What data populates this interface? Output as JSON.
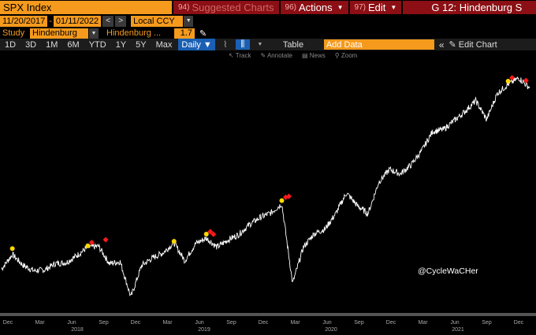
{
  "toolbar": {
    "ticker": "SPX Index",
    "suggested": {
      "num": "94)",
      "label": "Suggested Charts"
    },
    "actions": {
      "num": "96)",
      "label": "Actions"
    },
    "edit": {
      "num": "97)",
      "label": "Edit"
    },
    "title": "G 12: Hindenburg S"
  },
  "dates": {
    "start": "11/20/2017",
    "end": "01/11/2022",
    "currency": "Local CCY"
  },
  "study": {
    "label": "Study",
    "value": "Hindenburg",
    "param_label": "Hindenburg ...",
    "param_value": "1.7"
  },
  "ranges": [
    "1D",
    "3D",
    "1M",
    "6M",
    "YTD",
    "1Y",
    "5Y",
    "Max"
  ],
  "frequency": "Daily",
  "table_label": "Table",
  "add_data_placeholder": "Add Data",
  "edit_chart_label": "Edit Chart",
  "chart_tools": [
    "Track",
    "Annotate",
    "News",
    "Zoom"
  ],
  "watermark": "@CycleWaCHer",
  "colors": {
    "orange": "#f59a1d",
    "dark_red": "#8b0f14",
    "blue": "#1a5fb4",
    "signal_yellow": "#ffd700",
    "signal_red": "#ff1a1a"
  },
  "chart_data": {
    "type": "line",
    "series": [
      {
        "x": [
          "2017-12",
          "2018-01",
          "2018-02",
          "2018-03",
          "2018-04",
          "2018-05",
          "2018-06",
          "2018-07",
          "2018-08",
          "2018-09",
          "2018-10",
          "2018-11",
          "2018-12",
          "2019-01",
          "2019-02",
          "2019-03",
          "2019-04",
          "2019-05",
          "2019-06",
          "2019-07",
          "2019-08",
          "2019-09",
          "2019-10",
          "2019-11",
          "2019-12",
          "2020-01",
          "2020-02",
          "2020-03",
          "2020-04",
          "2020-05",
          "2020-06",
          "2020-07",
          "2020-08",
          "2020-09",
          "2020-10",
          "2020-11",
          "2020-12",
          "2021-01",
          "2021-02",
          "2021-03",
          "2021-04",
          "2021-05",
          "2021-06",
          "2021-07",
          "2021-08",
          "2021-09",
          "2021-10",
          "2021-11",
          "2021-12",
          "2022-01"
        ],
        "values": [
          2660,
          2820,
          2700,
          2640,
          2650,
          2720,
          2730,
          2810,
          2900,
          2910,
          2720,
          2740,
          2350,
          2700,
          2780,
          2840,
          2950,
          2750,
          2940,
          3000,
          2900,
          2980,
          3040,
          3150,
          3230,
          3280,
          3380,
          2500,
          2900,
          3050,
          3100,
          3270,
          3500,
          3360,
          3270,
          3620,
          3760,
          3710,
          3810,
          3970,
          4180,
          4200,
          4300,
          4400,
          4520,
          4310,
          4600,
          4700,
          4770,
          4660
        ]
      }
    ],
    "signals": {
      "yellow": [
        {
          "x": "2018-01",
          "y": 2850
        },
        {
          "x": "2018-08",
          "y": 2880
        },
        {
          "x": "2019-04",
          "y": 2930
        },
        {
          "x": "2019-07",
          "y": 3010
        },
        {
          "x": "2020-02",
          "y": 3380
        },
        {
          "x": "2021-11",
          "y": 4700
        }
      ],
      "red": [
        {
          "x": "2018-08",
          "y": 2900
        },
        {
          "x": "2018-09",
          "y": 2930
        },
        {
          "x": "2019-07",
          "y": 3020
        },
        {
          "x": "2019-07",
          "y": 2990
        },
        {
          "x": "2020-02",
          "y": 3400
        },
        {
          "x": "2020-02",
          "y": 3410
        },
        {
          "x": "2021-11",
          "y": 4720
        },
        {
          "x": "2021-12",
          "y": 4690
        }
      ]
    },
    "x_month_labels": [
      "Dec",
      "Mar",
      "Jun",
      "Sep",
      "Dec",
      "Mar",
      "Jun",
      "Sep",
      "Dec",
      "Mar",
      "Jun",
      "Sep",
      "Dec",
      "Mar",
      "Jun",
      "Sep",
      "Dec"
    ],
    "x_year_labels": [
      "2018",
      "2019",
      "2020",
      "2021"
    ],
    "ylim": [
      2200,
      4900
    ]
  }
}
